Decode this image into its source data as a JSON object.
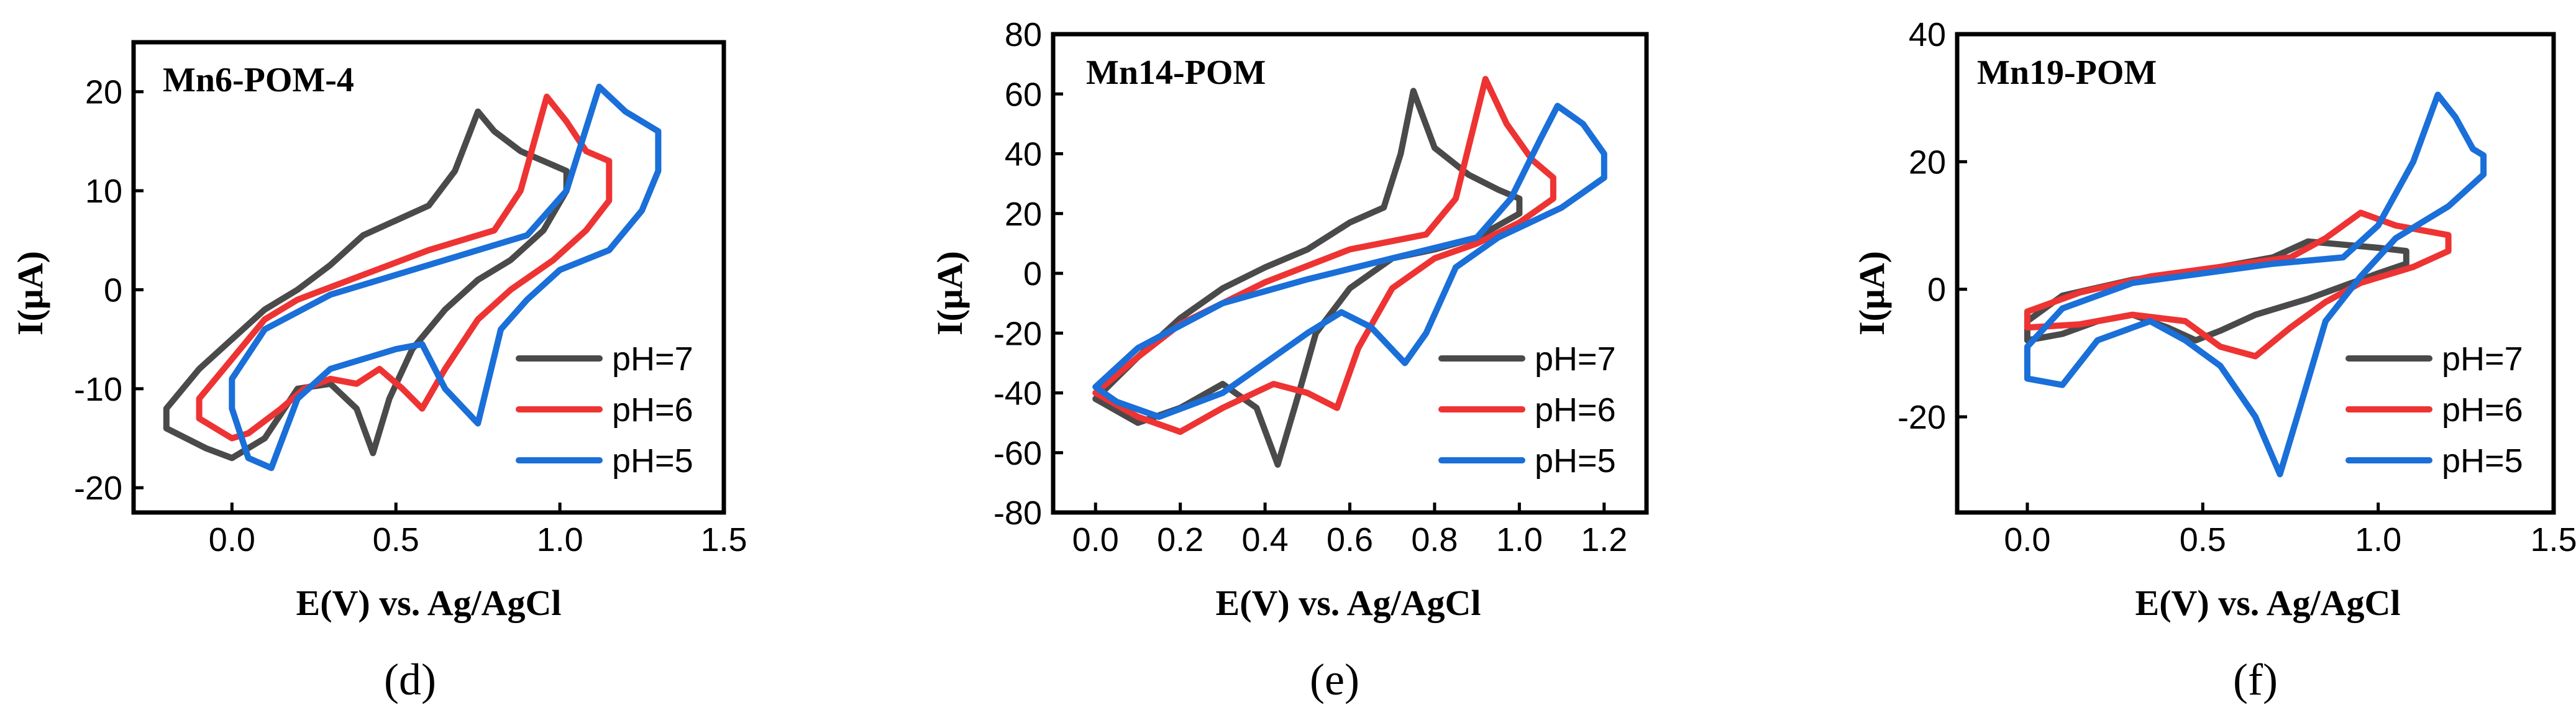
{
  "colors": {
    "pH7": "#4a4a4a",
    "pH6": "#ee3333",
    "pH5": "#1a6fd8"
  },
  "chart_data": [
    {
      "type": "line",
      "panel": "(d)",
      "title": "Mn6-POM-4",
      "xlabel": "E(V) vs. Ag/AgCl",
      "ylabel": "I(μA)",
      "xlim": [
        -0.3,
        1.5
      ],
      "ylim": [
        -22.5,
        25
      ],
      "xticks": [
        0.0,
        0.5,
        1.0,
        1.5
      ],
      "xtick_labels": [
        "0.0",
        "0.5",
        "1.0",
        "1.5"
      ],
      "yticks": [
        -20,
        -10,
        0,
        10,
        20
      ],
      "ytick_labels": [
        "-20",
        "-10",
        "0",
        "10",
        "20"
      ],
      "legend": [
        "pH=7",
        "pH=6",
        "pH=5"
      ],
      "legend_position": "bottom-right",
      "series": [
        {
          "name": "pH=7",
          "color": "#4a4a4a",
          "points": [
            [
              -0.2,
              -14
            ],
            [
              -0.2,
              -12
            ],
            [
              -0.1,
              -8
            ],
            [
              0.0,
              -5
            ],
            [
              0.1,
              -2
            ],
            [
              0.2,
              0
            ],
            [
              0.3,
              2.5
            ],
            [
              0.4,
              5.5
            ],
            [
              0.5,
              7
            ],
            [
              0.6,
              8.5
            ],
            [
              0.68,
              12
            ],
            [
              0.75,
              18
            ],
            [
              0.8,
              16
            ],
            [
              0.88,
              14
            ],
            [
              0.95,
              13
            ],
            [
              1.02,
              12
            ],
            [
              1.02,
              10
            ],
            [
              0.95,
              6
            ],
            [
              0.85,
              3
            ],
            [
              0.75,
              1
            ],
            [
              0.65,
              -2
            ],
            [
              0.55,
              -6
            ],
            [
              0.48,
              -11
            ],
            [
              0.43,
              -16.5
            ],
            [
              0.38,
              -12
            ],
            [
              0.3,
              -9.5
            ],
            [
              0.2,
              -10
            ],
            [
              0.1,
              -15
            ],
            [
              0.0,
              -17
            ],
            [
              -0.08,
              -16
            ],
            [
              -0.2,
              -14
            ]
          ]
        },
        {
          "name": "pH=6",
          "color": "#ee3333",
          "points": [
            [
              -0.1,
              -13
            ],
            [
              -0.1,
              -11
            ],
            [
              0.0,
              -7
            ],
            [
              0.1,
              -3
            ],
            [
              0.2,
              -1
            ],
            [
              0.4,
              1.5
            ],
            [
              0.6,
              4
            ],
            [
              0.8,
              6
            ],
            [
              0.88,
              10
            ],
            [
              0.96,
              19.5
            ],
            [
              1.02,
              17
            ],
            [
              1.08,
              14
            ],
            [
              1.15,
              13
            ],
            [
              1.15,
              9
            ],
            [
              1.08,
              6
            ],
            [
              0.98,
              3
            ],
            [
              0.85,
              0
            ],
            [
              0.75,
              -3
            ],
            [
              0.65,
              -8
            ],
            [
              0.58,
              -12
            ],
            [
              0.52,
              -10
            ],
            [
              0.45,
              -8
            ],
            [
              0.38,
              -9.5
            ],
            [
              0.3,
              -9
            ],
            [
              0.22,
              -10
            ],
            [
              0.15,
              -12
            ],
            [
              0.05,
              -14.5
            ],
            [
              0.0,
              -15
            ],
            [
              -0.1,
              -13
            ]
          ]
        },
        {
          "name": "pH=5",
          "color": "#1a6fd8",
          "points": [
            [
              0.0,
              -12
            ],
            [
              0.0,
              -9
            ],
            [
              0.1,
              -4
            ],
            [
              0.3,
              -0.5
            ],
            [
              0.5,
              1.5
            ],
            [
              0.7,
              3.5
            ],
            [
              0.9,
              5.5
            ],
            [
              1.02,
              10
            ],
            [
              1.12,
              20.5
            ],
            [
              1.2,
              18
            ],
            [
              1.25,
              17
            ],
            [
              1.3,
              16
            ],
            [
              1.3,
              12
            ],
            [
              1.25,
              8
            ],
            [
              1.15,
              4
            ],
            [
              1.0,
              2
            ],
            [
              0.9,
              -1
            ],
            [
              0.82,
              -4
            ],
            [
              0.75,
              -13.5
            ],
            [
              0.65,
              -10
            ],
            [
              0.58,
              -5.5
            ],
            [
              0.5,
              -6
            ],
            [
              0.4,
              -7
            ],
            [
              0.3,
              -8
            ],
            [
              0.2,
              -11
            ],
            [
              0.12,
              -18
            ],
            [
              0.05,
              -17
            ],
            [
              0.0,
              -12
            ]
          ]
        }
      ]
    },
    {
      "type": "line",
      "panel": "(e)",
      "title": "Mn14-POM",
      "xlabel": "E(V) vs. Ag/AgCl",
      "ylabel": "I(μA)",
      "xlim": [
        -0.1,
        1.3
      ],
      "ylim": [
        -80,
        80
      ],
      "xticks": [
        0.0,
        0.2,
        0.4,
        0.6,
        0.8,
        1.0,
        1.2
      ],
      "xtick_labels": [
        "0.0",
        "0.2",
        "0.4",
        "0.6",
        "0.8",
        "1.0",
        "1.2"
      ],
      "yticks": [
        -80,
        -60,
        -40,
        -20,
        0,
        20,
        40,
        60,
        80
      ],
      "ytick_labels": [
        "-80",
        "-60",
        "-40",
        "-20",
        "0",
        "20",
        "40",
        "60",
        "80"
      ],
      "legend": [
        "pH=7",
        "pH=6",
        "pH=5"
      ],
      "legend_position": "bottom-right",
      "series": [
        {
          "name": "pH=7",
          "color": "#4a4a4a",
          "points": [
            [
              0.0,
              -42
            ],
            [
              0.1,
              -28
            ],
            [
              0.2,
              -15
            ],
            [
              0.3,
              -5
            ],
            [
              0.4,
              2
            ],
            [
              0.5,
              8
            ],
            [
              0.6,
              17
            ],
            [
              0.68,
              22
            ],
            [
              0.72,
              40
            ],
            [
              0.75,
              61
            ],
            [
              0.8,
              42
            ],
            [
              0.88,
              33
            ],
            [
              0.95,
              28
            ],
            [
              1.0,
              25
            ],
            [
              1.0,
              20
            ],
            [
              0.9,
              12
            ],
            [
              0.8,
              8
            ],
            [
              0.7,
              5
            ],
            [
              0.6,
              -5
            ],
            [
              0.52,
              -20
            ],
            [
              0.48,
              -40
            ],
            [
              0.43,
              -64
            ],
            [
              0.38,
              -45
            ],
            [
              0.3,
              -37
            ],
            [
              0.2,
              -45
            ],
            [
              0.1,
              -50
            ],
            [
              0.0,
              -42
            ]
          ]
        },
        {
          "name": "pH=6",
          "color": "#ee3333",
          "points": [
            [
              0.0,
              -40
            ],
            [
              0.1,
              -28
            ],
            [
              0.2,
              -17
            ],
            [
              0.4,
              -3
            ],
            [
              0.6,
              8
            ],
            [
              0.78,
              13
            ],
            [
              0.85,
              25
            ],
            [
              0.92,
              65
            ],
            [
              0.97,
              50
            ],
            [
              1.03,
              38
            ],
            [
              1.08,
              32
            ],
            [
              1.08,
              25
            ],
            [
              1.0,
              17
            ],
            [
              0.9,
              10
            ],
            [
              0.8,
              5
            ],
            [
              0.7,
              -5
            ],
            [
              0.62,
              -25
            ],
            [
              0.57,
              -45
            ],
            [
              0.5,
              -40
            ],
            [
              0.42,
              -37
            ],
            [
              0.3,
              -45
            ],
            [
              0.2,
              -53
            ],
            [
              0.1,
              -48
            ],
            [
              0.0,
              -40
            ]
          ]
        },
        {
          "name": "pH=5",
          "color": "#1a6fd8",
          "points": [
            [
              0.0,
              -38
            ],
            [
              0.1,
              -25
            ],
            [
              0.3,
              -10
            ],
            [
              0.5,
              -2
            ],
            [
              0.7,
              5
            ],
            [
              0.9,
              12
            ],
            [
              0.98,
              25
            ],
            [
              1.05,
              45
            ],
            [
              1.09,
              56
            ],
            [
              1.15,
              50
            ],
            [
              1.2,
              40
            ],
            [
              1.2,
              32
            ],
            [
              1.1,
              22
            ],
            [
              0.95,
              12
            ],
            [
              0.85,
              2
            ],
            [
              0.78,
              -20
            ],
            [
              0.73,
              -30
            ],
            [
              0.65,
              -18
            ],
            [
              0.58,
              -13
            ],
            [
              0.5,
              -20
            ],
            [
              0.4,
              -30
            ],
            [
              0.3,
              -40
            ],
            [
              0.15,
              -48
            ],
            [
              0.05,
              -43
            ],
            [
              0.0,
              -38
            ]
          ]
        }
      ]
    },
    {
      "type": "line",
      "panel": "(f)",
      "title": "Mn19-POM",
      "xlabel": "E(V) vs. Ag/AgCl",
      "ylabel": "I(μA)",
      "xlim": [
        -0.2,
        1.5
      ],
      "ylim": [
        -35,
        40
      ],
      "xticks": [
        0.0,
        0.5,
        1.0,
        1.5
      ],
      "xtick_labels": [
        "0.0",
        "0.5",
        "1.0",
        "1.5"
      ],
      "yticks": [
        -20,
        0,
        20,
        40
      ],
      "ytick_labels": [
        "-20",
        "0",
        "20",
        "40"
      ],
      "legend": [
        "pH=7",
        "pH=6",
        "pH=5"
      ],
      "legend_position": "bottom-right",
      "series": [
        {
          "name": "pH=7",
          "color": "#4a4a4a",
          "points": [
            [
              0.0,
              -8
            ],
            [
              0.0,
              -5
            ],
            [
              0.1,
              -1
            ],
            [
              0.3,
              1.5
            ],
            [
              0.5,
              3
            ],
            [
              0.7,
              5
            ],
            [
              0.8,
              7.5
            ],
            [
              0.9,
              7
            ],
            [
              1.0,
              6.5
            ],
            [
              1.08,
              6
            ],
            [
              1.08,
              4
            ],
            [
              1.0,
              2.5
            ],
            [
              0.9,
              0.5
            ],
            [
              0.8,
              -1.5
            ],
            [
              0.65,
              -4
            ],
            [
              0.55,
              -6.5
            ],
            [
              0.48,
              -8
            ],
            [
              0.4,
              -6
            ],
            [
              0.3,
              -4
            ],
            [
              0.2,
              -5
            ],
            [
              0.1,
              -7
            ],
            [
              0.0,
              -8
            ]
          ]
        },
        {
          "name": "pH=6",
          "color": "#ee3333",
          "points": [
            [
              0.0,
              -6
            ],
            [
              0.0,
              -3.5
            ],
            [
              0.15,
              -0.5
            ],
            [
              0.35,
              2
            ],
            [
              0.55,
              3.5
            ],
            [
              0.75,
              5
            ],
            [
              0.85,
              8
            ],
            [
              0.95,
              12
            ],
            [
              1.05,
              10
            ],
            [
              1.15,
              9
            ],
            [
              1.2,
              8.5
            ],
            [
              1.2,
              6
            ],
            [
              1.1,
              3.5
            ],
            [
              0.95,
              1
            ],
            [
              0.85,
              -2
            ],
            [
              0.75,
              -6
            ],
            [
              0.65,
              -10.5
            ],
            [
              0.55,
              -9
            ],
            [
              0.45,
              -5
            ],
            [
              0.3,
              -4
            ],
            [
              0.15,
              -5.5
            ],
            [
              0.0,
              -6
            ]
          ]
        },
        {
          "name": "pH=5",
          "color": "#1a6fd8",
          "points": [
            [
              0.0,
              -14
            ],
            [
              0.0,
              -9
            ],
            [
              0.1,
              -3
            ],
            [
              0.3,
              1
            ],
            [
              0.5,
              2.5
            ],
            [
              0.7,
              4
            ],
            [
              0.9,
              5
            ],
            [
              1.0,
              10
            ],
            [
              1.1,
              20
            ],
            [
              1.17,
              30.5
            ],
            [
              1.22,
              27
            ],
            [
              1.27,
              22
            ],
            [
              1.3,
              21
            ],
            [
              1.3,
              18
            ],
            [
              1.2,
              13
            ],
            [
              1.05,
              8
            ],
            [
              0.95,
              2
            ],
            [
              0.85,
              -5
            ],
            [
              0.78,
              -18
            ],
            [
              0.72,
              -29
            ],
            [
              0.65,
              -20
            ],
            [
              0.55,
              -12
            ],
            [
              0.45,
              -8
            ],
            [
              0.35,
              -5
            ],
            [
              0.2,
              -8
            ],
            [
              0.1,
              -15
            ],
            [
              0.0,
              -14
            ]
          ]
        }
      ]
    }
  ]
}
